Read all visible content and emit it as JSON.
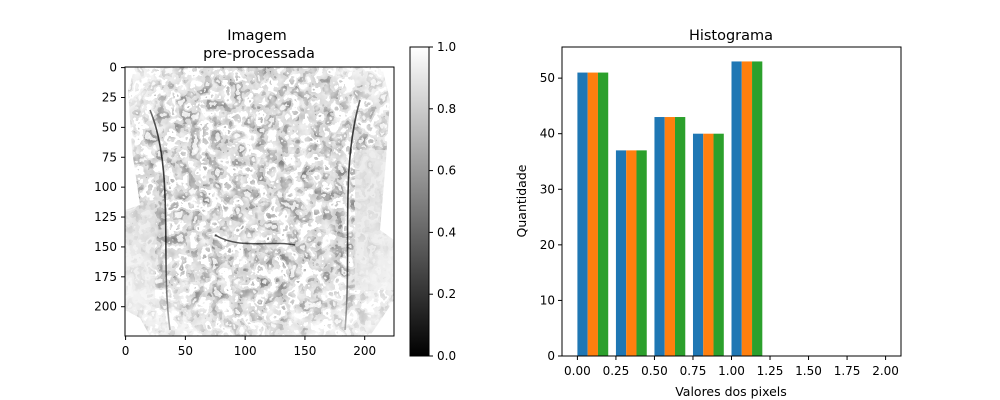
{
  "chart_data": [
    {
      "type": "heatmap",
      "title": "Imagem\npre-processada",
      "title_lines": [
        "Imagem",
        "pre-processada"
      ],
      "xlim": [
        0,
        224
      ],
      "ylim": [
        224,
        0
      ],
      "xticks": [
        "0",
        "50",
        "100",
        "150",
        "200"
      ],
      "yticks": [
        "0",
        "25",
        "50",
        "75",
        "100",
        "125",
        "150",
        "175",
        "200"
      ],
      "colormap": "gray",
      "colorbar": {
        "range": [
          0,
          1
        ],
        "ticks": [
          "0.0",
          "0.2",
          "0.4",
          "0.6",
          "0.8",
          "1.0"
        ]
      }
    },
    {
      "type": "bar",
      "title": "Histograma",
      "xlabel": "Valores dos pixels",
      "ylabel": "Quantidade",
      "xlim": [
        -0.1,
        2.1
      ],
      "ylim": [
        0,
        55.6
      ],
      "xticks": [
        "0.00",
        "0.25",
        "0.50",
        "0.75",
        "1.00",
        "1.25",
        "1.50",
        "1.75",
        "2.00"
      ],
      "yticks": [
        "0",
        "10",
        "20",
        "30",
        "40",
        "50"
      ],
      "bins": [
        [
          0.0,
          0.2
        ],
        [
          0.25,
          0.45
        ],
        [
          0.5,
          0.7
        ],
        [
          0.75,
          0.95
        ],
        [
          1.0,
          1.2
        ]
      ],
      "series": [
        {
          "values": [
            51,
            37,
            43,
            40,
            53
          ],
          "color": "#1f77b4"
        },
        {
          "values": [
            51,
            37,
            43,
            40,
            53
          ],
          "color": "#ff7f0e"
        },
        {
          "values": [
            51,
            37,
            43,
            40,
            53
          ],
          "color": "#2ca02c"
        }
      ],
      "grid": false
    }
  ]
}
